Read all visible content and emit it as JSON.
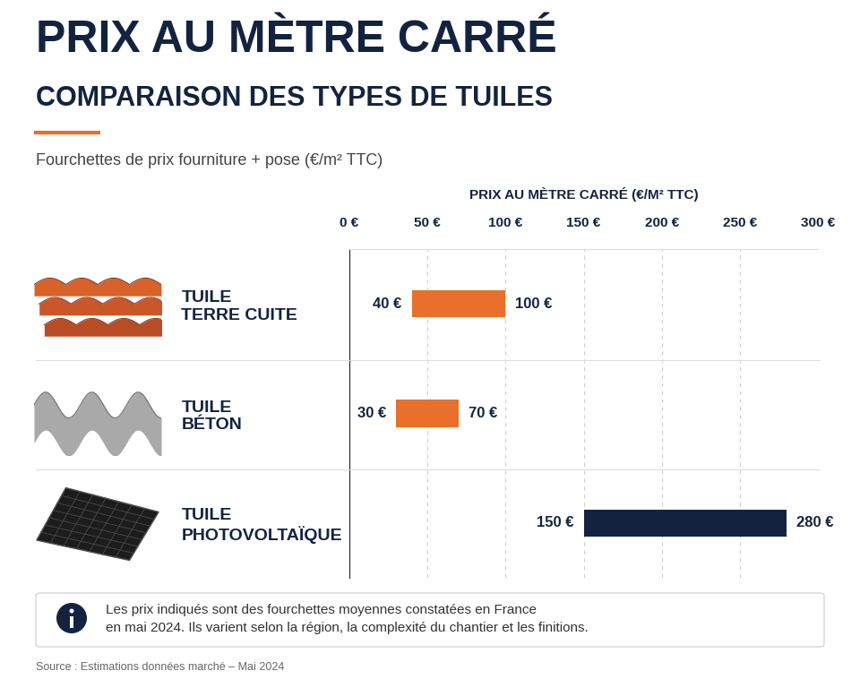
{
  "chart_data": {
    "type": "bar",
    "orientation": "horizontal",
    "title": "PRIX AU MÈTRE CARRÉ",
    "subtitle": "COMPARAISON DES TYPES DE TUILES",
    "description": "Fourchettes de prix fourniture + pose (€/m² TTC)",
    "x_label": "PRIX AU MÈTRE CARRÉ (€/M² TTC)",
    "categories": [
      "TUILE\nTERRE CUITE",
      "TUILE\nBÉTON",
      "TUILE\nPHOTOVOLTAÏQUE"
    ],
    "values": [
      [
        40,
        100
      ],
      [
        30,
        70
      ],
      [
        150,
        280
      ]
    ],
    "value_labels": [
      [
        "40 €",
        "100 €"
      ],
      [
        "30 €",
        "70 €"
      ],
      [
        "150 €",
        "280 €"
      ]
    ],
    "data_labels": true,
    "colors": [
      "#e8702a",
      "#e8702a",
      "#13233f"
    ],
    "xlim": [
      0,
      300
    ],
    "xticks": [
      {
        "value": 0,
        "label": "0 €"
      },
      {
        "value": 50,
        "label": "50 €"
      },
      {
        "value": 100,
        "label": "100 €"
      },
      {
        "value": 150,
        "label": "150 €"
      },
      {
        "value": 200,
        "label": "200 €"
      },
      {
        "value": 250,
        "label": "250 €"
      },
      {
        "value": 300,
        "label": "300 €"
      }
    ],
    "grid": true,
    "note": "Les prix indiqués sont des fourchettes moyennes constatées en France\nen mai 2024. Ils varient selon la région, la complexité du chantier et les finitions.",
    "source": "Source : Estimations données marché – Mai 2024"
  }
}
